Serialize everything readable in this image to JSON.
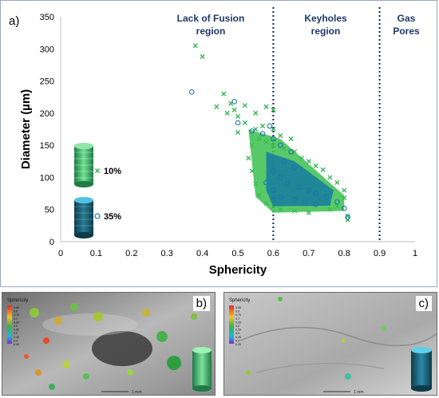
{
  "panels": {
    "a": {
      "label": "a)"
    },
    "b": {
      "label": "b)",
      "colorbar_title": "Sphericity",
      "colorbar_ticks": [
        "0.85",
        "0.8",
        "0.75",
        "0.7",
        "0.65",
        "0.6",
        "0.55",
        "0.5",
        "0.45",
        "0.4",
        "0.35"
      ],
      "scalebar": "1 mm"
    },
    "c": {
      "label": "c)",
      "colorbar_title": "Sphericity",
      "colorbar_ticks": [
        "0.85",
        "0.8",
        "0.75",
        "0.7",
        "0.65",
        "0.6",
        "0.55",
        "0.5",
        "0.45",
        "0.4",
        "0.35"
      ],
      "scalebar": "1 mm"
    }
  },
  "regions": {
    "lack_of_fusion": [
      "Lack of Fusion",
      "region"
    ],
    "keyholes": [
      "Keyholes",
      "region"
    ],
    "gas_pores": [
      "Gas",
      "Pores"
    ]
  },
  "chart_data": {
    "type": "scatter",
    "title": "",
    "xlabel": "Sphericity",
    "ylabel": "Diameter (µm)",
    "xlim": [
      0,
      1
    ],
    "ylim": [
      0,
      350
    ],
    "xticks": [
      "0",
      "0.1",
      "0.2",
      "0.3",
      "0.4",
      "0.5",
      "0.6",
      "0.7",
      "0.8",
      "0.9",
      "1"
    ],
    "yticks": [
      "0",
      "50",
      "100",
      "150",
      "200",
      "250",
      "300",
      "350"
    ],
    "grid": false,
    "vlines": [
      0.6,
      0.9
    ],
    "legend_placement": "left-inside",
    "series": [
      {
        "name": "10%",
        "marker": "x",
        "color": "#2db34a",
        "points": [
          [
            0.38,
            305
          ],
          [
            0.4,
            288
          ],
          [
            0.46,
            230
          ],
          [
            0.48,
            215
          ],
          [
            0.49,
            205
          ],
          [
            0.5,
            195
          ],
          [
            0.47,
            200
          ],
          [
            0.52,
            212
          ],
          [
            0.55,
            200
          ],
          [
            0.58,
            210
          ],
          [
            0.6,
            205
          ],
          [
            0.52,
            185
          ],
          [
            0.55,
            175
          ],
          [
            0.57,
            180
          ],
          [
            0.6,
            175
          ],
          [
            0.62,
            165
          ],
          [
            0.65,
            160
          ],
          [
            0.58,
            155
          ],
          [
            0.6,
            150
          ],
          [
            0.63,
            145
          ],
          [
            0.66,
            140
          ],
          [
            0.68,
            130
          ],
          [
            0.7,
            125
          ],
          [
            0.72,
            118
          ],
          [
            0.74,
            112
          ],
          [
            0.76,
            100
          ],
          [
            0.78,
            92
          ],
          [
            0.8,
            80
          ],
          [
            0.8,
            68
          ],
          [
            0.81,
            40
          ],
          [
            0.81,
            34
          ],
          [
            0.78,
            55
          ],
          [
            0.76,
            50
          ],
          [
            0.7,
            45
          ],
          [
            0.66,
            48
          ],
          [
            0.62,
            50
          ],
          [
            0.6,
            55
          ],
          [
            0.58,
            60
          ],
          [
            0.56,
            72
          ],
          [
            0.55,
            90
          ],
          [
            0.54,
            110
          ],
          [
            0.53,
            130
          ],
          [
            0.54,
            150
          ],
          [
            0.56,
            160
          ],
          [
            0.59,
            128
          ],
          [
            0.64,
            110
          ],
          [
            0.67,
            95
          ],
          [
            0.7,
            80
          ],
          [
            0.73,
            68
          ],
          [
            0.75,
            60
          ],
          [
            0.5,
            170
          ],
          [
            0.44,
            210
          ]
        ]
      },
      {
        "name": "35%",
        "marker": "o",
        "color": "#1a78a8",
        "points": [
          [
            0.37,
            233
          ],
          [
            0.49,
            218
          ],
          [
            0.5,
            185
          ],
          [
            0.54,
            172
          ],
          [
            0.57,
            168
          ],
          [
            0.59,
            180
          ],
          [
            0.6,
            160
          ],
          [
            0.62,
            150
          ],
          [
            0.65,
            140
          ],
          [
            0.63,
            125
          ],
          [
            0.66,
            115
          ],
          [
            0.6,
            110
          ],
          [
            0.62,
            100
          ],
          [
            0.64,
            90
          ],
          [
            0.67,
            85
          ],
          [
            0.7,
            80
          ],
          [
            0.72,
            75
          ],
          [
            0.75,
            70
          ],
          [
            0.78,
            62
          ],
          [
            0.8,
            52
          ],
          [
            0.81,
            38
          ],
          [
            0.6,
            80
          ],
          [
            0.62,
            70
          ],
          [
            0.66,
            65
          ],
          [
            0.69,
            60
          ],
          [
            0.72,
            58
          ],
          [
            0.6,
            65
          ],
          [
            0.58,
            92
          ]
        ]
      }
    ],
    "legend": [
      "10%",
      "35%"
    ]
  }
}
